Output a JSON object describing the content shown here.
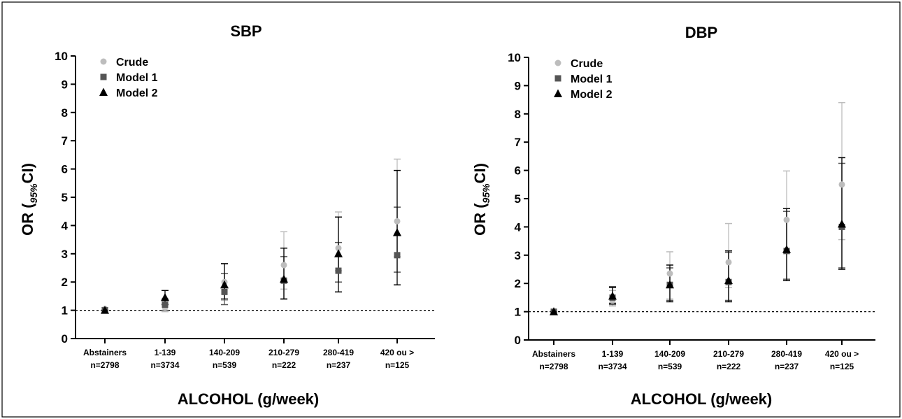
{
  "chart_data": [
    {
      "type": "scatter",
      "title": "SBP",
      "xlabel": "ALCOHOL (g/week)",
      "ylabel": {
        "main": "OR (",
        "sub": "95%",
        "post": "CI)"
      },
      "ylim": [
        0,
        10
      ],
      "yticks": [
        0,
        1,
        2,
        3,
        4,
        5,
        6,
        7,
        8,
        9,
        10
      ],
      "reference_line": 1,
      "categories": [
        "Abstainers",
        "1-139",
        "140-209",
        "210-279",
        "280-419",
        "420 ou >"
      ],
      "category_n": [
        "n=2798",
        "n=3734",
        "n=539",
        "n=222",
        "n=237",
        "n=125"
      ],
      "legend": {
        "placement": "top-left"
      },
      "series": [
        {
          "name": "Crude",
          "marker": "circle",
          "color": "#bdbdbd",
          "values": [
            1.05,
            1.1,
            2.0,
            2.6,
            3.2,
            4.15
          ],
          "ci_low": [
            1.0,
            0.95,
            1.35,
            1.75,
            2.4,
            2.9
          ],
          "ci_high": [
            1.1,
            1.25,
            2.65,
            3.78,
            4.48,
            6.35
          ]
        },
        {
          "name": "Model 1",
          "marker": "square",
          "color": "#555555",
          "values": [
            1.0,
            1.2,
            1.65,
            2.05,
            2.4,
            2.95
          ],
          "ci_low": [
            1.0,
            1.0,
            1.2,
            1.4,
            2.0,
            2.35
          ],
          "ci_high": [
            1.0,
            1.4,
            2.3,
            2.9,
            3.4,
            4.65
          ]
        },
        {
          "name": "Model 2",
          "marker": "triangle",
          "color": "#000000",
          "values": [
            1.0,
            1.45,
            1.9,
            2.1,
            3.0,
            3.75
          ],
          "ci_low": [
            1.0,
            1.2,
            1.4,
            1.4,
            1.65,
            1.9
          ],
          "ci_high": [
            1.0,
            1.7,
            2.65,
            3.2,
            4.3,
            5.95
          ]
        }
      ],
      "colors": {
        "crude": "#bdbdbd",
        "model1": "#555555",
        "model2": "#000000"
      }
    },
    {
      "type": "scatter",
      "title": "DBP",
      "xlabel": "ALCOHOL (g/week)",
      "ylabel": {
        "main": "OR (",
        "sub": "95%",
        "post": "CI)"
      },
      "ylim": [
        0,
        10
      ],
      "yticks": [
        0,
        1,
        2,
        3,
        4,
        5,
        6,
        7,
        8,
        9,
        10
      ],
      "reference_line": 1,
      "categories": [
        "Abstainers",
        "1-139",
        "140-209",
        "210-279",
        "280-419",
        "420 ou >"
      ],
      "category_n": [
        "n=2798",
        "n=3734",
        "n=539",
        "n=222",
        "n=237",
        "n=125"
      ],
      "legend": {
        "placement": "top-left"
      },
      "series": [
        {
          "name": "Crude",
          "marker": "circle",
          "color": "#bdbdbd",
          "values": [
            1.0,
            1.4,
            2.35,
            2.75,
            4.25,
            5.5
          ],
          "ci_low": [
            1.0,
            1.2,
            1.45,
            1.85,
            3.05,
            3.55
          ],
          "ci_high": [
            1.0,
            1.75,
            3.12,
            4.12,
            5.98,
            8.4
          ]
        },
        {
          "name": "Model 1",
          "marker": "square",
          "color": "#555555",
          "values": [
            1.0,
            1.5,
            1.95,
            2.05,
            3.15,
            4.0
          ],
          "ci_low": [
            1.0,
            1.25,
            1.4,
            1.4,
            2.15,
            2.55
          ],
          "ci_high": [
            1.0,
            1.85,
            2.55,
            3.1,
            4.55,
            6.25
          ]
        },
        {
          "name": "Model 2",
          "marker": "triangle",
          "color": "#000000",
          "values": [
            1.0,
            1.55,
            1.95,
            2.1,
            3.2,
            4.1
          ],
          "ci_low": [
            1.0,
            1.3,
            1.35,
            1.35,
            2.1,
            2.5
          ],
          "ci_high": [
            1.0,
            1.88,
            2.65,
            3.15,
            4.65,
            6.45
          ]
        }
      ],
      "colors": {
        "crude": "#bdbdbd",
        "model1": "#555555",
        "model2": "#000000"
      }
    }
  ]
}
